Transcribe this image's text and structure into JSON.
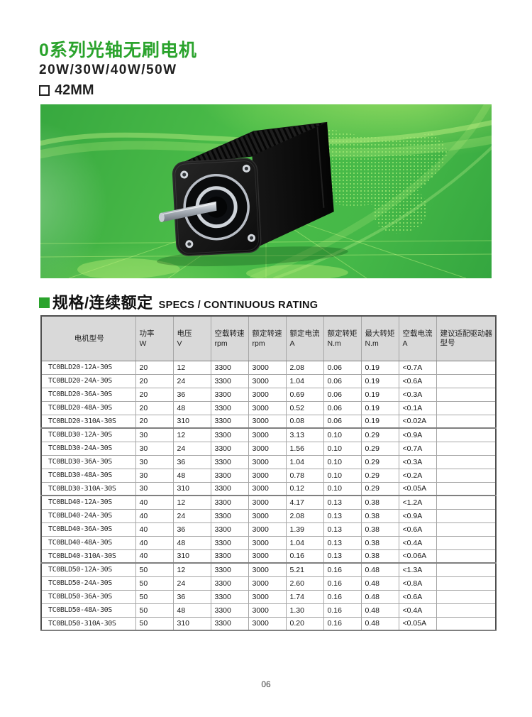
{
  "header": {
    "title": "0系列光轴无刷电机",
    "subtitle": "20W/30W/40W/50W",
    "frame_size": "42MM"
  },
  "banner": {
    "image": "black-square-brushless-motor-photo",
    "background_green": "#45b847"
  },
  "section": {
    "title_cn": "规格/连续额定",
    "title_en": "SPECS / CONTINUOUS RATING"
  },
  "colors": {
    "accent_green": "#2aa32c",
    "table_header_bg": "#d9d9d9"
  },
  "table": {
    "columns": [
      {
        "lines": [
          "电机型号"
        ]
      },
      {
        "lines": [
          "功率",
          "W"
        ]
      },
      {
        "lines": [
          "电压",
          "V"
        ]
      },
      {
        "lines": [
          "空载转速",
          "rpm"
        ]
      },
      {
        "lines": [
          "额定转速",
          "rpm"
        ]
      },
      {
        "lines": [
          "额定电流",
          "A"
        ]
      },
      {
        "lines": [
          "额定转矩",
          "N.m"
        ]
      },
      {
        "lines": [
          "最大转矩",
          "N.m"
        ]
      },
      {
        "lines": [
          "空载电流",
          "A"
        ]
      },
      {
        "lines": [
          "建议适配驱动器型号"
        ]
      }
    ],
    "rows": [
      {
        "cells": [
          "TC0BLD20-12A-30S",
          "20",
          "12",
          "3300",
          "3000",
          "2.08",
          "0.06",
          "0.19",
          "<0.7A",
          ""
        ]
      },
      {
        "cells": [
          "TC0BLD20-24A-30S",
          "20",
          "24",
          "3300",
          "3000",
          "1.04",
          "0.06",
          "0.19",
          "<0.6A",
          ""
        ]
      },
      {
        "cells": [
          "TC0BLD20-36A-30S",
          "20",
          "36",
          "3300",
          "3000",
          "0.69",
          "0.06",
          "0.19",
          "<0.3A",
          ""
        ]
      },
      {
        "cells": [
          "TC0BLD20-48A-30S",
          "20",
          "48",
          "3300",
          "3000",
          "0.52",
          "0.06",
          "0.19",
          "<0.1A",
          ""
        ]
      },
      {
        "cells": [
          "TC0BLD20-310A-30S",
          "20",
          "310",
          "3300",
          "3000",
          "0.08",
          "0.06",
          "0.19",
          "<0.02A",
          ""
        ]
      },
      {
        "cells": [
          "TC0BLD30-12A-30S",
          "30",
          "12",
          "3300",
          "3000",
          "3.13",
          "0.10",
          "0.29",
          "<0.9A",
          ""
        ]
      },
      {
        "cells": [
          "TC0BLD30-24A-30S",
          "30",
          "24",
          "3300",
          "3000",
          "1.56",
          "0.10",
          "0.29",
          "<0.7A",
          ""
        ]
      },
      {
        "cells": [
          "TC0BLD30-36A-30S",
          "30",
          "36",
          "3300",
          "3000",
          "1.04",
          "0.10",
          "0.29",
          "<0.3A",
          ""
        ]
      },
      {
        "cells": [
          "TC0BLD30-48A-30S",
          "30",
          "48",
          "3300",
          "3000",
          "0.78",
          "0.10",
          "0.29",
          "<0.2A",
          ""
        ]
      },
      {
        "cells": [
          "TC0BLD30-310A-30S",
          "30",
          "310",
          "3300",
          "3000",
          "0.12",
          "0.10",
          "0.29",
          "<0.05A",
          ""
        ]
      },
      {
        "cells": [
          "TC0BLD40-12A-30S",
          "40",
          "12",
          "3300",
          "3000",
          "4.17",
          "0.13",
          "0.38",
          "<1.2A",
          ""
        ]
      },
      {
        "cells": [
          "TC0BLD40-24A-30S",
          "40",
          "24",
          "3300",
          "3000",
          "2.08",
          "0.13",
          "0.38",
          "<0.9A",
          ""
        ]
      },
      {
        "cells": [
          "TC0BLD40-36A-30S",
          "40",
          "36",
          "3300",
          "3000",
          "1.39",
          "0.13",
          "0.38",
          "<0.6A",
          ""
        ]
      },
      {
        "cells": [
          "TC0BLD40-48A-30S",
          "40",
          "48",
          "3300",
          "3000",
          "1.04",
          "0.13",
          "0.38",
          "<0.4A",
          ""
        ]
      },
      {
        "cells": [
          "TC0BLD40-310A-30S",
          "40",
          "310",
          "3300",
          "3000",
          "0.16",
          "0.13",
          "0.38",
          "<0.06A",
          ""
        ]
      },
      {
        "cells": [
          "TC0BLD50-12A-30S",
          "50",
          "12",
          "3300",
          "3000",
          "5.21",
          "0.16",
          "0.48",
          "<1.3A",
          ""
        ]
      },
      {
        "cells": [
          "TC0BLD50-24A-30S",
          "50",
          "24",
          "3300",
          "3000",
          "2.60",
          "0.16",
          "0.48",
          "<0.8A",
          ""
        ]
      },
      {
        "cells": [
          "TC0BLD50-36A-30S",
          "50",
          "36",
          "3300",
          "3000",
          "1.74",
          "0.16",
          "0.48",
          "<0.6A",
          ""
        ]
      },
      {
        "cells": [
          "TC0BLD50-48A-30S",
          "50",
          "48",
          "3300",
          "3000",
          "1.30",
          "0.16",
          "0.48",
          "<0.4A",
          ""
        ]
      },
      {
        "cells": [
          "TC0BLD50-310A-30S",
          "50",
          "310",
          "3300",
          "3000",
          "0.20",
          "0.16",
          "0.48",
          "<0.05A",
          ""
        ]
      }
    ]
  },
  "footer": {
    "page_number": "06"
  }
}
